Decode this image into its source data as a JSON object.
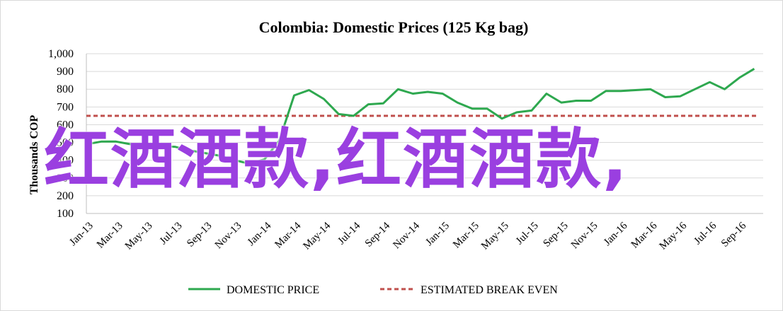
{
  "chart_data": {
    "type": "line",
    "title": "Colombia:  Domestic Prices (125 Kg bag)",
    "ylabel": "Thousands COP",
    "xlabel": "",
    "ylim": [
      100,
      1000
    ],
    "y_ticks": [
      "100",
      "200",
      "300",
      "400",
      "500",
      "600",
      "700",
      "800",
      "900",
      "1,000"
    ],
    "y_tick_values": [
      100,
      200,
      300,
      400,
      500,
      600,
      700,
      800,
      900,
      1000
    ],
    "x_tick_labels": [
      "Jan-13",
      "Mar-13",
      "May-13",
      "Jul-13",
      "Sep-13",
      "Nov-13",
      "Jan-14",
      "Mar-14",
      "May-14",
      "Jul-14",
      "Sep-14",
      "Nov-14",
      "Jan-15",
      "Mar-15",
      "May-15",
      "Jul-15",
      "Sep-15",
      "Nov-15",
      "Jan-16",
      "Mar-16",
      "May-16",
      "Jul-16",
      "Sep-16"
    ],
    "grid": true,
    "legend_position": "bottom",
    "series": [
      {
        "name": "DOMESTIC PRICE",
        "color": "#2ea84f",
        "style": "solid",
        "x": [
          "Jan-13",
          "Feb-13",
          "Mar-13",
          "Apr-13",
          "May-13",
          "Jun-13",
          "Jul-13",
          "Aug-13",
          "Sep-13",
          "Oct-13",
          "Nov-13",
          "Dec-13",
          "Jan-14",
          "Feb-14",
          "Mar-14",
          "Apr-14",
          "May-14",
          "Jun-14",
          "Jul-14",
          "Aug-14",
          "Sep-14",
          "Oct-14",
          "Nov-14",
          "Dec-14",
          "Jan-15",
          "Feb-15",
          "Mar-15",
          "Apr-15",
          "May-15",
          "Jun-15",
          "Jul-15",
          "Aug-15",
          "Sep-15",
          "Oct-15",
          "Nov-15",
          "Dec-15",
          "Jan-16",
          "Feb-16",
          "Mar-16",
          "Apr-16",
          "May-16",
          "Jun-16",
          "Jul-16",
          "Aug-16",
          "Sep-16",
          "Oct-16"
        ],
        "values": [
          490,
          505,
          505,
          490,
          485,
          480,
          475,
          455,
          440,
          425,
          400,
          380,
          405,
          510,
          765,
          795,
          745,
          660,
          650,
          715,
          720,
          800,
          775,
          785,
          775,
          725,
          690,
          690,
          635,
          670,
          680,
          775,
          725,
          735,
          735,
          790,
          790,
          795,
          800,
          755,
          760,
          800,
          840,
          800,
          865,
          915
        ]
      },
      {
        "name": "ESTIMATED BREAK EVEN",
        "color": "#c0504d",
        "style": "dashed",
        "values": [
          650
        ]
      }
    ]
  },
  "watermark": "红酒酒款,红酒酒款,"
}
